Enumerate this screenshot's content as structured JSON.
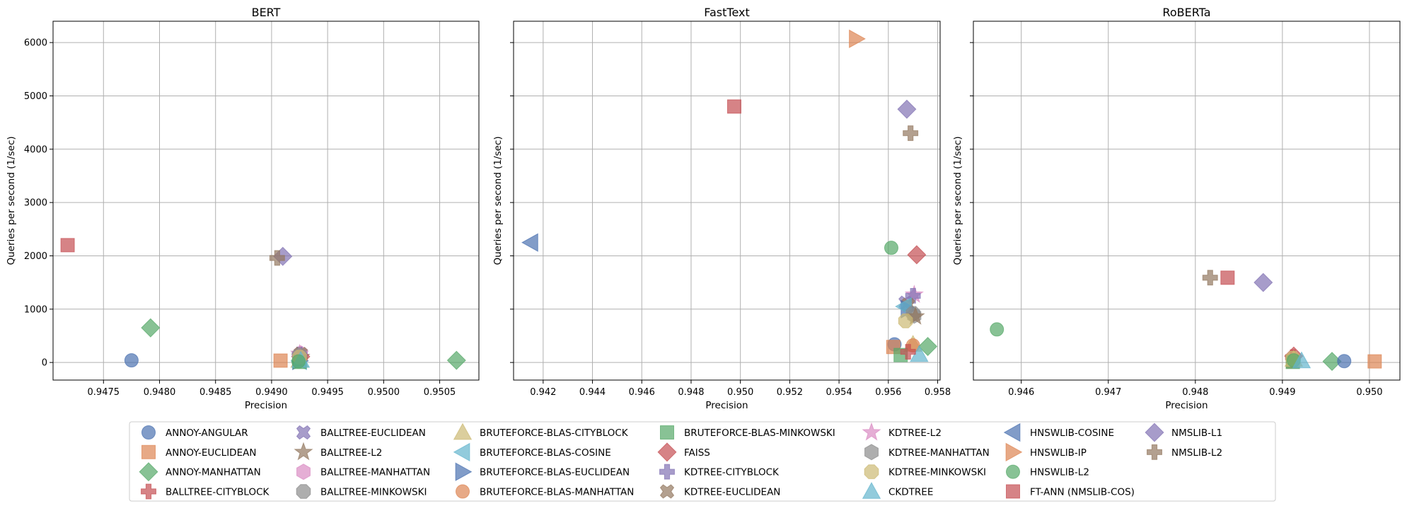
{
  "figure": {
    "legend_placement": "bottom-center"
  },
  "styles": [
    {
      "name": "ANNOY-ANGULAR",
      "color": "#4c72b0",
      "marker": "circle"
    },
    {
      "name": "ANNOY-EUCLIDEAN",
      "color": "#dd8452",
      "marker": "square"
    },
    {
      "name": "ANNOY-MANHATTAN",
      "color": "#55a868",
      "marker": "diamond"
    },
    {
      "name": "BALLTREE-CITYBLOCK",
      "color": "#c44e52",
      "marker": "plus"
    },
    {
      "name": "BALLTREE-EUCLIDEAN",
      "color": "#8172b3",
      "marker": "x"
    },
    {
      "name": "BALLTREE-L2",
      "color": "#937860",
      "marker": "star"
    },
    {
      "name": "BALLTREE-MANHATTAN",
      "color": "#da8bc3",
      "marker": "hexagon"
    },
    {
      "name": "BALLTREE-MINKOWSKI",
      "color": "#8c8c8c",
      "marker": "octagon"
    },
    {
      "name": "BRUTEFORCE-BLAS-CITYBLOCK",
      "color": "#ccb974",
      "marker": "triangle-up"
    },
    {
      "name": "BRUTEFORCE-BLAS-COSINE",
      "color": "#64b5cd",
      "marker": "triangle-left"
    },
    {
      "name": "BRUTEFORCE-BLAS-EUCLIDEAN",
      "color": "#4c72b0",
      "marker": "triangle-right"
    },
    {
      "name": "BRUTEFORCE-BLAS-MANHATTAN",
      "color": "#dd8452",
      "marker": "circle"
    },
    {
      "name": "BRUTEFORCE-BLAS-MINKOWSKI",
      "color": "#55a868",
      "marker": "square"
    },
    {
      "name": "FAISS",
      "color": "#c44e52",
      "marker": "diamond"
    },
    {
      "name": "KDTREE-CITYBLOCK",
      "color": "#8172b3",
      "marker": "plus"
    },
    {
      "name": "KDTREE-EUCLIDEAN",
      "color": "#937860",
      "marker": "x"
    },
    {
      "name": "KDTREE-L2",
      "color": "#da8bc3",
      "marker": "star"
    },
    {
      "name": "KDTREE-MANHATTAN",
      "color": "#8c8c8c",
      "marker": "hexagon"
    },
    {
      "name": "KDTREE-MINKOWSKI",
      "color": "#ccb974",
      "marker": "octagon"
    },
    {
      "name": "CKDTREE",
      "color": "#64b5cd",
      "marker": "triangle-up"
    },
    {
      "name": "HNSWLIB-COSINE",
      "color": "#4c72b0",
      "marker": "triangle-left"
    },
    {
      "name": "HNSWLIB-IP",
      "color": "#dd8452",
      "marker": "triangle-right"
    },
    {
      "name": "HNSWLIB-L2",
      "color": "#55a868",
      "marker": "circle"
    },
    {
      "name": "FT-ANN (NMSLIB-COS)",
      "color": "#c44e52",
      "marker": "square"
    },
    {
      "name": "NMSLIB-L1",
      "color": "#8172b3",
      "marker": "diamond"
    },
    {
      "name": "NMSLIB-L2",
      "color": "#937860",
      "marker": "plus"
    }
  ],
  "chart_data": [
    {
      "type": "scatter",
      "title": "BERT",
      "xlabel": "Precision",
      "ylabel": "Queries per second (1/sec)",
      "grid": true,
      "xlim": [
        0.94705,
        0.95085
      ],
      "ylim": [
        -330,
        6400
      ],
      "xticks": [
        0.9475,
        0.948,
        0.9485,
        0.949,
        0.9495,
        0.95,
        0.9505
      ],
      "xticklabels": [
        "0.9475",
        "0.9480",
        "0.9485",
        "0.9490",
        "0.9495",
        "0.9500",
        "0.9505"
      ],
      "yticks": [
        0,
        1000,
        2000,
        3000,
        4000,
        5000,
        6000
      ],
      "yticklabels": [
        "0",
        "1000",
        "2000",
        "3000",
        "4000",
        "5000",
        "6000"
      ],
      "points": [
        {
          "series": "ANNOY-ANGULAR",
          "x": 0.94775,
          "y": 40
        },
        {
          "series": "ANNOY-EUCLIDEAN",
          "x": 0.94908,
          "y": 35
        },
        {
          "series": "ANNOY-MANHATTAN",
          "x": 0.94792,
          "y": 650
        },
        {
          "series": "BALLTREE-CITYBLOCK",
          "x": 0.94925,
          "y": 150
        },
        {
          "series": "BALLTREE-EUCLIDEAN",
          "x": 0.94926,
          "y": 120
        },
        {
          "series": "BALLTREE-L2",
          "x": 0.94926,
          "y": 100
        },
        {
          "series": "BALLTREE-MANHATTAN",
          "x": 0.94926,
          "y": 170
        },
        {
          "series": "BALLTREE-MINKOWSKI",
          "x": 0.94925,
          "y": 80
        },
        {
          "series": "BRUTEFORCE-BLAS-CITYBLOCK",
          "x": 0.94925,
          "y": 40
        },
        {
          "series": "BRUTEFORCE-BLAS-COSINE",
          "x": 0.94925,
          "y": 30
        },
        {
          "series": "BRUTEFORCE-BLAS-EUCLIDEAN",
          "x": 0.94925,
          "y": 30
        },
        {
          "series": "BRUTEFORCE-BLAS-MANHATTAN",
          "x": 0.94926,
          "y": 90
        },
        {
          "series": "BRUTEFORCE-BLAS-MINKOWSKI",
          "x": 0.94925,
          "y": 10
        },
        {
          "series": "FAISS",
          "x": 0.94926,
          "y": 110
        },
        {
          "series": "KDTREE-CITYBLOCK",
          "x": 0.94925,
          "y": 150
        },
        {
          "series": "KDTREE-EUCLIDEAN",
          "x": 0.94926,
          "y": 160
        },
        {
          "series": "KDTREE-L2",
          "x": 0.94925,
          "y": 160
        },
        {
          "series": "KDTREE-MANHATTAN",
          "x": 0.94925,
          "y": 140
        },
        {
          "series": "KDTREE-MINKOWSKI",
          "x": 0.94925,
          "y": 100
        },
        {
          "series": "CKDTREE",
          "x": 0.94926,
          "y": 40
        },
        {
          "series": "HNSWLIB-L2",
          "x": 0.94924,
          "y": 20
        },
        {
          "series": "ANNOY-MANHATTAN",
          "x": 0.95065,
          "y": 40
        },
        {
          "series": "FT-ANN (NMSLIB-COS)",
          "x": 0.94718,
          "y": 2200
        },
        {
          "series": "NMSLIB-L1",
          "x": 0.9491,
          "y": 1990
        },
        {
          "series": "NMSLIB-L2",
          "x": 0.94905,
          "y": 1960
        }
      ]
    },
    {
      "type": "scatter",
      "title": "FastText",
      "xlabel": "Precision",
      "ylabel": "Queries per second (1/sec)",
      "grid": true,
      "xlim": [
        0.9408,
        0.9581
      ],
      "ylim": [
        -330,
        6400
      ],
      "xticks": [
        0.942,
        0.944,
        0.946,
        0.948,
        0.95,
        0.952,
        0.954,
        0.956,
        0.958
      ],
      "xticklabels": [
        "0.942",
        "0.944",
        "0.946",
        "0.948",
        "0.950",
        "0.952",
        "0.954",
        "0.956",
        "0.958"
      ],
      "yticks": [
        0,
        1000,
        2000,
        3000,
        4000,
        5000,
        6000
      ],
      "yticklabels": [
        "",
        "",
        "",
        "",
        "",
        "",
        ""
      ],
      "points": [
        {
          "series": "HNSWLIB-COSINE",
          "x": 0.9415,
          "y": 2250
        },
        {
          "series": "FT-ANN (NMSLIB-COS)",
          "x": 0.94975,
          "y": 4800
        },
        {
          "series": "HNSWLIB-IP",
          "x": 0.9547,
          "y": 6070
        },
        {
          "series": "NMSLIB-L1",
          "x": 0.95675,
          "y": 4750
        },
        {
          "series": "NMSLIB-L2",
          "x": 0.9569,
          "y": 4300
        },
        {
          "series": "HNSWLIB-L2",
          "x": 0.95612,
          "y": 2150
        },
        {
          "series": "FAISS",
          "x": 0.95715,
          "y": 2020
        },
        {
          "series": "KDTREE-L2",
          "x": 0.95705,
          "y": 1270
        },
        {
          "series": "KDTREE-CITYBLOCK",
          "x": 0.957,
          "y": 1250
        },
        {
          "series": "BALLTREE-EUCLIDEAN",
          "x": 0.9567,
          "y": 1120
        },
        {
          "series": "KDTREE-EUCLIDEAN",
          "x": 0.9568,
          "y": 1080
        },
        {
          "series": "BRUTEFORCE-BLAS-EUCLIDEAN",
          "x": 0.9568,
          "y": 1000
        },
        {
          "series": "BRUTEFORCE-BLAS-COSINE",
          "x": 0.95665,
          "y": 1050
        },
        {
          "series": "BALLTREE-MINKOWSKI",
          "x": 0.957,
          "y": 920
        },
        {
          "series": "KDTREE-MANHATTAN",
          "x": 0.95705,
          "y": 880
        },
        {
          "series": "BALLTREE-L2",
          "x": 0.9571,
          "y": 860
        },
        {
          "series": "KDTREE-MINKOWSKI",
          "x": 0.9567,
          "y": 780
        },
        {
          "series": "ANNOY-ANGULAR",
          "x": 0.95625,
          "y": 340
        },
        {
          "series": "ANNOY-EUCLIDEAN",
          "x": 0.9562,
          "y": 290
        },
        {
          "series": "BRUTEFORCE-BLAS-CITYBLOCK",
          "x": 0.957,
          "y": 340
        },
        {
          "series": "BRUTEFORCE-BLAS-MANHATTAN",
          "x": 0.957,
          "y": 320
        },
        {
          "series": "ANNOY-MANHATTAN",
          "x": 0.9576,
          "y": 300
        },
        {
          "series": "BRUTEFORCE-BLAS-MINKOWSKI",
          "x": 0.9565,
          "y": 140
        },
        {
          "series": "CKDTREE",
          "x": 0.95725,
          "y": 150
        },
        {
          "series": "BALLTREE-CITYBLOCK",
          "x": 0.9568,
          "y": 200
        }
      ]
    },
    {
      "type": "scatter",
      "title": "RoBERTa",
      "xlabel": "Precision",
      "ylabel": "Queries per second (1/sec)",
      "grid": true,
      "xlim": [
        0.94545,
        0.95035
      ],
      "ylim": [
        -330,
        6400
      ],
      "xticks": [
        0.946,
        0.947,
        0.948,
        0.949,
        0.95
      ],
      "xticklabels": [
        "0.946",
        "0.947",
        "0.948",
        "0.949",
        "0.950"
      ],
      "yticks": [
        0,
        1000,
        2000,
        3000,
        4000,
        5000,
        6000
      ],
      "yticklabels": [
        "",
        "",
        "",
        "",
        "",
        "",
        ""
      ],
      "points": [
        {
          "series": "HNSWLIB-L2",
          "x": 0.94572,
          "y": 620
        },
        {
          "series": "NMSLIB-L2",
          "x": 0.94817,
          "y": 1590
        },
        {
          "series": "FT-ANN (NMSLIB-COS)",
          "x": 0.94837,
          "y": 1590
        },
        {
          "series": "NMSLIB-L1",
          "x": 0.94878,
          "y": 1500
        },
        {
          "series": "FAISS",
          "x": 0.94913,
          "y": 120
        },
        {
          "series": "BALLTREE-CITYBLOCK",
          "x": 0.94912,
          "y": 100
        },
        {
          "series": "ANNOY-EUCLIDEAN",
          "x": 0.94912,
          "y": 20
        },
        {
          "series": "BRUTEFORCE-BLAS-MINKOWSKI",
          "x": 0.94912,
          "y": 10
        },
        {
          "series": "BRUTEFORCE-BLAS-CITYBLOCK",
          "x": 0.94913,
          "y": 60
        },
        {
          "series": "KDTREE-MINKOWSKI",
          "x": 0.94912,
          "y": 80
        },
        {
          "series": "HNSWLIB-L2",
          "x": 0.94913,
          "y": 40
        },
        {
          "series": "CKDTREE",
          "x": 0.94922,
          "y": 30
        },
        {
          "series": "ANNOY-MANHATTAN",
          "x": 0.94957,
          "y": 20
        },
        {
          "series": "ANNOY-ANGULAR",
          "x": 0.94971,
          "y": 25
        },
        {
          "series": "ANNOY-EUCLIDEAN",
          "x": 0.95006,
          "y": 20
        }
      ]
    }
  ]
}
